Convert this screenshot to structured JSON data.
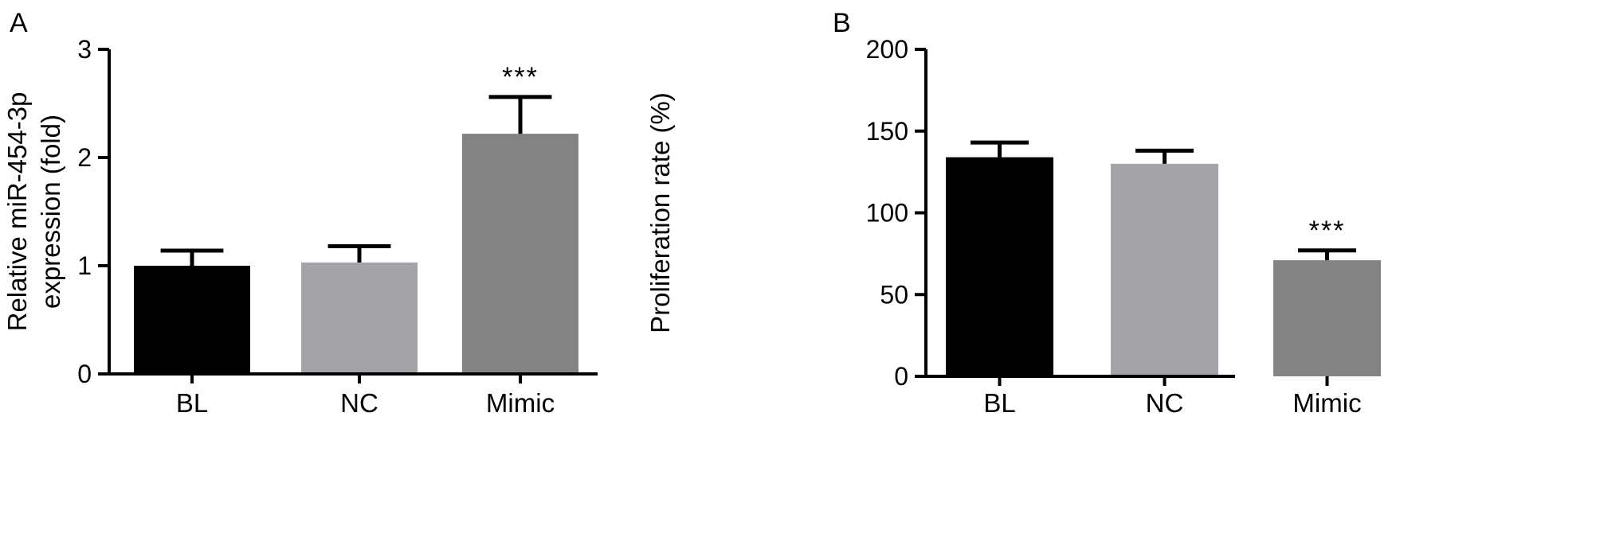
{
  "chart_data": [
    {
      "panel_label": "A",
      "type": "bar",
      "categories": [
        "BL",
        "NC",
        "Mimic"
      ],
      "values": [
        1.0,
        1.03,
        2.22
      ],
      "errors": [
        0.14,
        0.15,
        0.34
      ],
      "significance": [
        "",
        "",
        "***"
      ],
      "colors": [
        "#000000",
        "#a3a3a8",
        "#838383"
      ],
      "ylabel_lines": [
        "Relative miR-454-3p",
        "expression (fold)"
      ],
      "ylim": [
        0,
        3
      ],
      "yticks": [
        0,
        1,
        2,
        3
      ],
      "ytick_labels": [
        "0",
        "1",
        "2",
        "3"
      ],
      "grid": false
    },
    {
      "panel_label": "B",
      "type": "bar",
      "categories": [
        "BL",
        "NC",
        "Mimic"
      ],
      "values": [
        134,
        130,
        71
      ],
      "errors": [
        9,
        8,
        6
      ],
      "significance": [
        "",
        "",
        "***"
      ],
      "colors": [
        "#000000",
        "#a3a3a8",
        "#838383"
      ],
      "ylabel_lines": [
        "Proliferation rate (%)"
      ],
      "ylim": [
        0,
        200
      ],
      "yticks": [
        0,
        50,
        100,
        150,
        200
      ],
      "ytick_labels": [
        "0",
        "50",
        "100",
        "150",
        "200"
      ],
      "grid": false
    }
  ]
}
